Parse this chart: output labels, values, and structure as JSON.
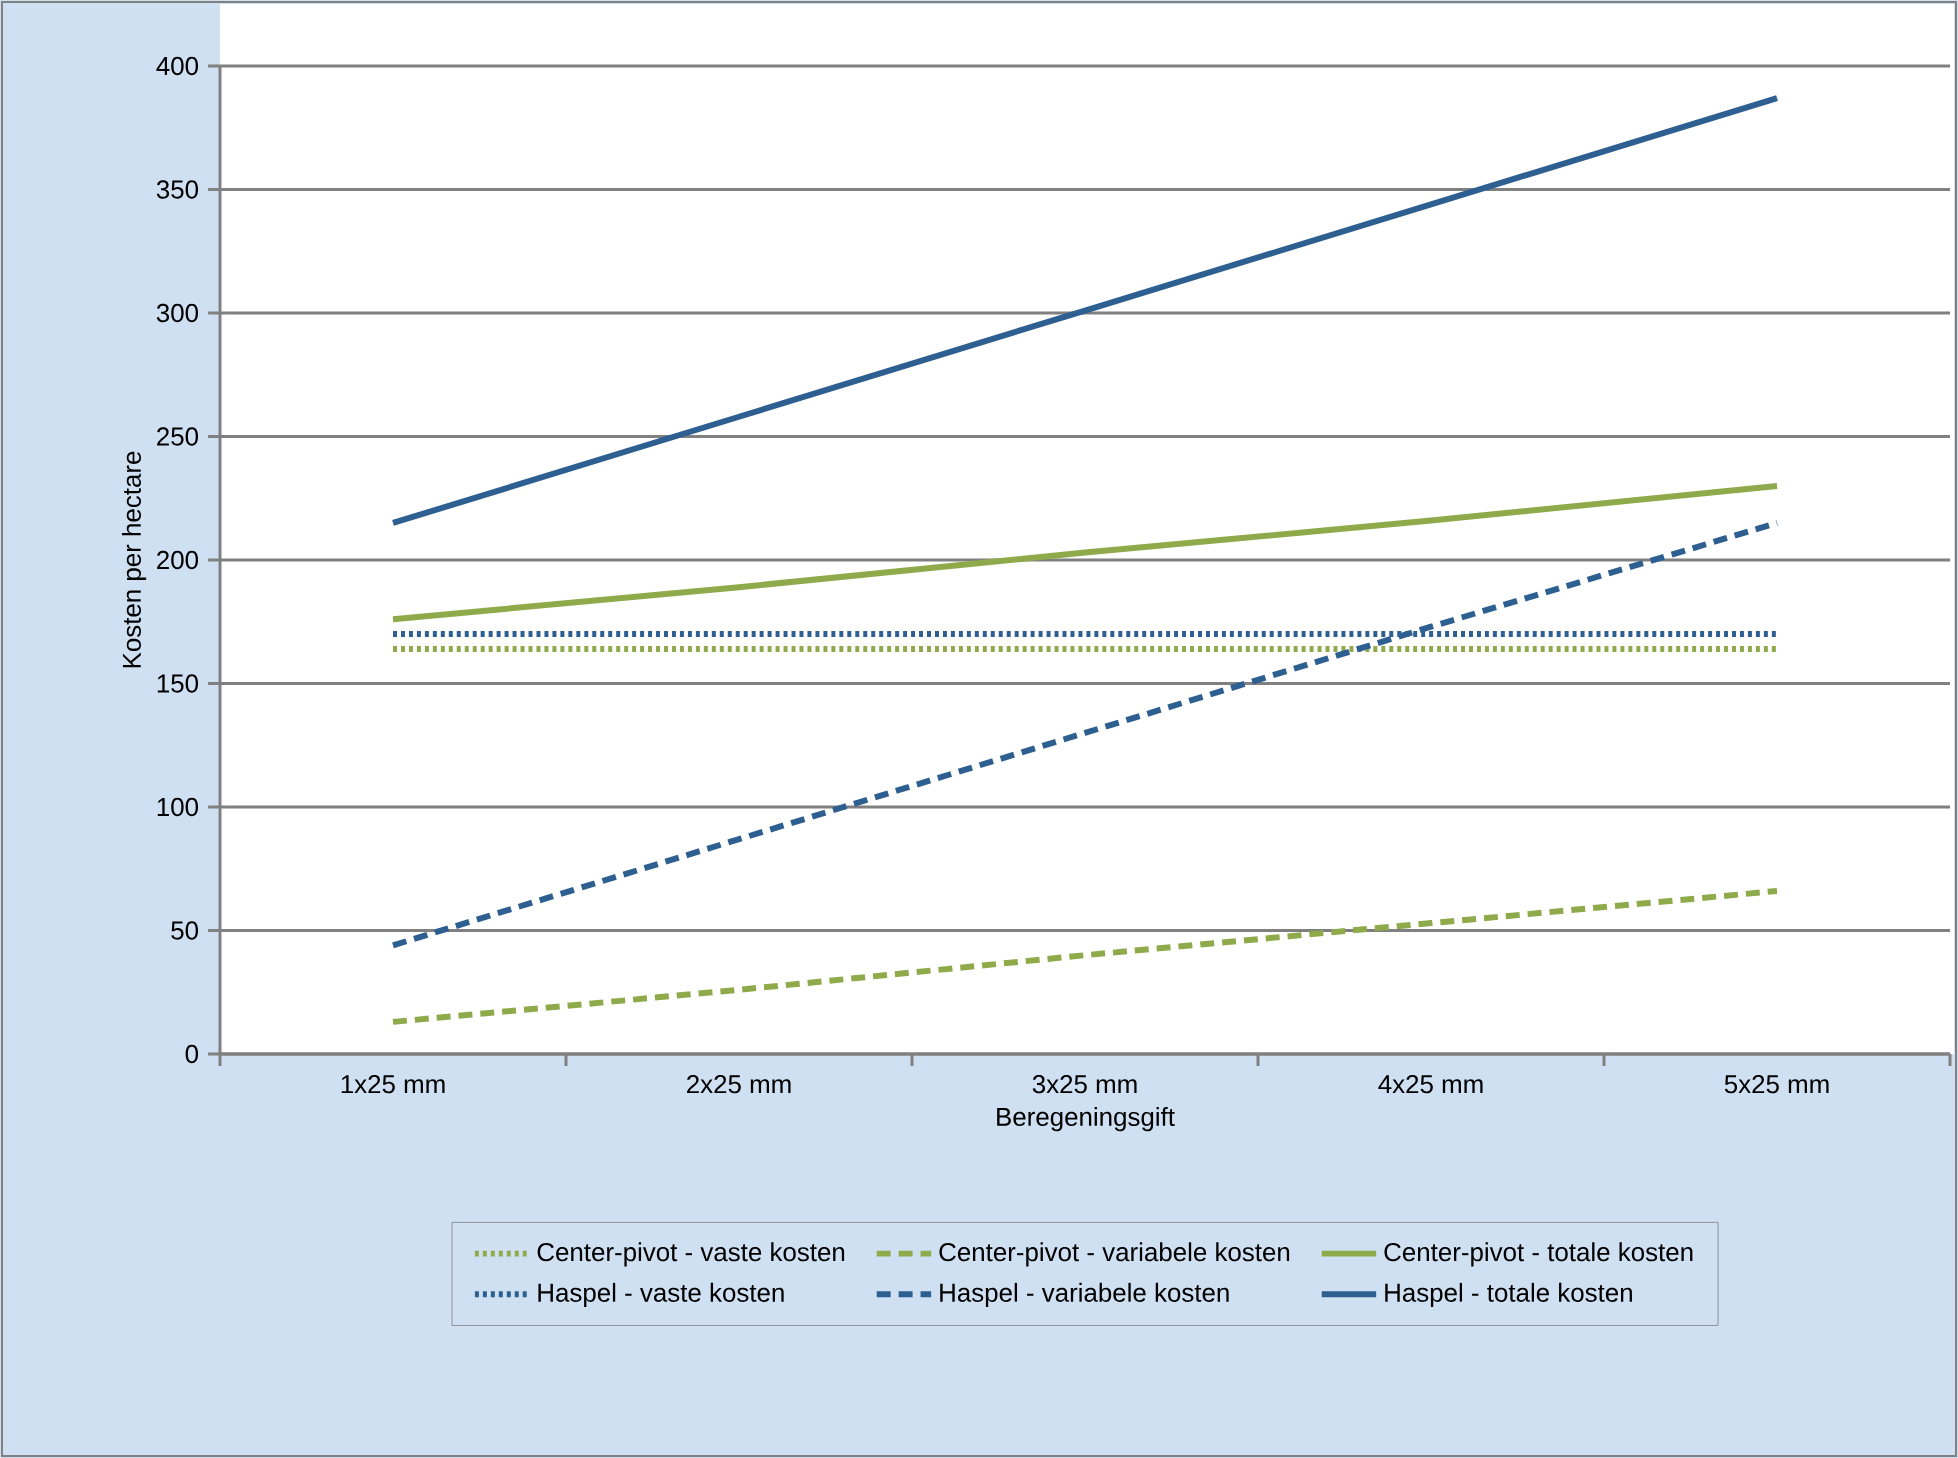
{
  "chart_data": {
    "type": "line",
    "xlabel": "Beregeningsgift",
    "ylabel": "Kosten per hectare",
    "categories": [
      "1x25 mm",
      "2x25 mm",
      "3x25 mm",
      "4x25 mm",
      "5x25 mm"
    ],
    "series": [
      {
        "name": "Center-pivot - vaste kosten",
        "color": "#8faa4b",
        "line_style": "dotted",
        "values": [
          164,
          164,
          164,
          164,
          164
        ]
      },
      {
        "name": "Center-pivot - variabele kosten",
        "color": "#8faa4b",
        "line_style": "dashed",
        "values": [
          13,
          26,
          40,
          53,
          66
        ]
      },
      {
        "name": "Center-pivot - totale kosten",
        "color": "#8faa4b",
        "line_style": "solid",
        "values": [
          176,
          189,
          203,
          216,
          230
        ]
      },
      {
        "name": "Haspel - vaste kosten",
        "color": "#2e5f91",
        "line_style": "dotted",
        "values": [
          170,
          170,
          170,
          170,
          170
        ]
      },
      {
        "name": "Haspel - variabele kosten",
        "color": "#2e5f91",
        "line_style": "dashed",
        "values": [
          44,
          87,
          130,
          173,
          215
        ]
      },
      {
        "name": "Haspel - totale kosten",
        "color": "#2e5f91",
        "line_style": "solid",
        "values": [
          215,
          258,
          301,
          344,
          387
        ]
      }
    ],
    "ylim": [
      0,
      400
    ],
    "yticks": [
      0,
      50,
      100,
      150,
      200,
      250,
      300,
      350,
      400
    ],
    "grid": "y",
    "legend": "bottom",
    "marker": "none"
  }
}
